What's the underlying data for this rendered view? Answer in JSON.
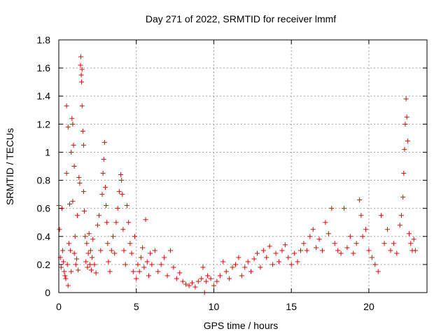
{
  "chart_data": {
    "type": "scatter",
    "title": "Day 271 of 2022, SRMTID for receiver lmmf",
    "xlabel": "GPS time / hours",
    "ylabel": "SRMTID / TECUs",
    "xlim": [
      0,
      23.75
    ],
    "ylim": [
      0,
      1.8
    ],
    "xticks": [
      0,
      5,
      10,
      15,
      20
    ],
    "xtick_labels": [
      "0",
      "5",
      "10",
      "15",
      "20"
    ],
    "yticks": [
      0,
      0.2,
      0.4,
      0.6,
      0.8,
      1,
      1.2,
      1.4,
      1.6,
      1.8
    ],
    "ytick_labels": [
      "0",
      "0.2",
      "0.4",
      "0.6",
      "0.8",
      "1",
      "1.2",
      "1.4",
      "1.6",
      "1.8"
    ],
    "grid": true,
    "marker": "+",
    "point_color": "#ee0000",
    "series": [
      {
        "name": "SRMTID",
        "points": [
          [
            0.0,
            0.62
          ],
          [
            0.05,
            0.45
          ],
          [
            0.1,
            0.25
          ],
          [
            0.15,
            0.18
          ],
          [
            0.2,
            0.6
          ],
          [
            0.25,
            0.3
          ],
          [
            0.3,
            0.22
          ],
          [
            0.35,
            0.15
          ],
          [
            0.4,
            0.12
          ],
          [
            0.45,
            0.1
          ],
          [
            0.5,
            0.85
          ],
          [
            0.5,
            1.33
          ],
          [
            0.55,
            0.2
          ],
          [
            0.6,
            0.05
          ],
          [
            0.6,
            1.18
          ],
          [
            0.65,
            0.35
          ],
          [
            0.7,
            0.63
          ],
          [
            0.75,
            0.3
          ],
          [
            0.8,
            1.0
          ],
          [
            0.8,
            0.15
          ],
          [
            0.85,
            1.24
          ],
          [
            0.9,
            1.2
          ],
          [
            0.9,
            0.65
          ],
          [
            0.95,
            1.05
          ],
          [
            1.0,
            0.9
          ],
          [
            1.0,
            0.28
          ],
          [
            1.05,
            0.4
          ],
          [
            1.1,
            0.2
          ],
          [
            1.15,
            0.24
          ],
          [
            1.2,
            0.55
          ],
          [
            1.25,
            0.16
          ],
          [
            1.3,
            0.82
          ],
          [
            1.35,
            0.78
          ],
          [
            1.4,
            1.62
          ],
          [
            1.42,
            1.68
          ],
          [
            1.45,
            1.55
          ],
          [
            1.47,
            1.5
          ],
          [
            1.5,
            1.59
          ],
          [
            1.5,
            1.33
          ],
          [
            1.55,
            1.15
          ],
          [
            1.6,
            1.05
          ],
          [
            1.6,
            0.72
          ],
          [
            1.65,
            0.58
          ],
          [
            1.7,
            0.4
          ],
          [
            1.75,
            0.22
          ],
          [
            1.8,
            0.35
          ],
          [
            1.85,
            0.18
          ],
          [
            1.9,
            0.28
          ],
          [
            1.95,
            0.42
          ],
          [
            2.0,
            0.2
          ],
          [
            2.05,
            0.3
          ],
          [
            2.1,
            0.16
          ],
          [
            2.15,
            0.25
          ],
          [
            2.2,
            0.38
          ],
          [
            2.3,
            0.2
          ],
          [
            2.4,
            0.14
          ],
          [
            2.5,
            0.48
          ],
          [
            2.6,
            0.55
          ],
          [
            2.7,
            0.3
          ],
          [
            2.8,
            0.7
          ],
          [
            2.85,
            0.85
          ],
          [
            2.9,
            0.95
          ],
          [
            2.95,
            1.07
          ],
          [
            3.0,
            0.75
          ],
          [
            3.05,
            0.62
          ],
          [
            3.1,
            0.5
          ],
          [
            3.15,
            0.35
          ],
          [
            3.2,
            0.22
          ],
          [
            3.3,
            0.15
          ],
          [
            3.4,
            0.3
          ],
          [
            3.5,
            0.4
          ],
          [
            3.6,
            0.28
          ],
          [
            3.7,
            0.5
          ],
          [
            3.8,
            0.6
          ],
          [
            3.9,
            0.72
          ],
          [
            4.0,
            0.84
          ],
          [
            4.05,
            0.8
          ],
          [
            4.1,
            0.7
          ],
          [
            4.15,
            0.45
          ],
          [
            4.2,
            0.3
          ],
          [
            4.3,
            0.2
          ],
          [
            4.4,
            0.62
          ],
          [
            4.5,
            0.5
          ],
          [
            4.6,
            0.35
          ],
          [
            4.7,
            0.28
          ],
          [
            4.8,
            0.15
          ],
          [
            4.9,
            0.4
          ],
          [
            5.0,
            0.1
          ],
          [
            5.1,
            0.2
          ],
          [
            5.2,
            0.15
          ],
          [
            5.3,
            0.25
          ],
          [
            5.4,
            0.32
          ],
          [
            5.5,
            0.18
          ],
          [
            5.6,
            0.52
          ],
          [
            5.7,
            0.22
          ],
          [
            5.8,
            0.12
          ],
          [
            5.9,
            0.28
          ],
          [
            6.0,
            0.2
          ],
          [
            6.2,
            0.3
          ],
          [
            6.4,
            0.15
          ],
          [
            6.6,
            0.2
          ],
          [
            6.8,
            0.25
          ],
          [
            7.0,
            0.12
          ],
          [
            7.2,
            0.3
          ],
          [
            7.4,
            0.18
          ],
          [
            7.6,
            0.1
          ],
          [
            7.8,
            0.14
          ],
          [
            8.0,
            0.08
          ],
          [
            8.2,
            0.06
          ],
          [
            8.4,
            0.05
          ],
          [
            8.6,
            0.07
          ],
          [
            8.8,
            0.04
          ],
          [
            9.0,
            0.08
          ],
          [
            9.2,
            0.1
          ],
          [
            9.3,
            0.18
          ],
          [
            9.4,
            0.0
          ],
          [
            9.5,
            0.08
          ],
          [
            9.6,
            0.12
          ],
          [
            9.8,
            0.1
          ],
          [
            10.0,
            0.05
          ],
          [
            10.2,
            0.08
          ],
          [
            10.4,
            0.12
          ],
          [
            10.6,
            0.22
          ],
          [
            10.8,
            0.15
          ],
          [
            11.0,
            0.1
          ],
          [
            11.2,
            0.18
          ],
          [
            11.4,
            0.2
          ],
          [
            11.6,
            0.25
          ],
          [
            11.8,
            0.12
          ],
          [
            12.0,
            0.18
          ],
          [
            12.2,
            0.22
          ],
          [
            12.4,
            0.15
          ],
          [
            12.6,
            0.24
          ],
          [
            12.8,
            0.28
          ],
          [
            13.0,
            0.18
          ],
          [
            13.2,
            0.3
          ],
          [
            13.4,
            0.25
          ],
          [
            13.6,
            0.33
          ],
          [
            13.8,
            0.2
          ],
          [
            14.0,
            0.28
          ],
          [
            14.2,
            0.22
          ],
          [
            14.4,
            0.3
          ],
          [
            14.6,
            0.34
          ],
          [
            14.8,
            0.25
          ],
          [
            15.0,
            0.2
          ],
          [
            15.2,
            0.28
          ],
          [
            15.4,
            0.22
          ],
          [
            15.6,
            0.3
          ],
          [
            15.8,
            0.35
          ],
          [
            16.0,
            0.3
          ],
          [
            16.2,
            0.4
          ],
          [
            16.4,
            0.45
          ],
          [
            16.6,
            0.32
          ],
          [
            16.8,
            0.38
          ],
          [
            17.0,
            0.3
          ],
          [
            17.2,
            0.5
          ],
          [
            17.4,
            0.42
          ],
          [
            17.6,
            0.6
          ],
          [
            17.8,
            0.35
          ],
          [
            18.0,
            0.3
          ],
          [
            18.2,
            0.28
          ],
          [
            18.4,
            0.6
          ],
          [
            18.6,
            0.32
          ],
          [
            18.8,
            0.4
          ],
          [
            19.0,
            0.28
          ],
          [
            19.2,
            0.35
          ],
          [
            19.4,
            0.66
          ],
          [
            19.5,
            0.55
          ],
          [
            19.6,
            0.4
          ],
          [
            19.8,
            0.45
          ],
          [
            20.0,
            0.3
          ],
          [
            20.2,
            0.25
          ],
          [
            20.4,
            0.2
          ],
          [
            20.6,
            0.15
          ],
          [
            20.8,
            0.55
          ],
          [
            21.0,
            0.35
          ],
          [
            21.2,
            0.45
          ],
          [
            21.4,
            0.3
          ],
          [
            21.6,
            0.35
          ],
          [
            21.8,
            0.28
          ],
          [
            22.0,
            0.48
          ],
          [
            22.1,
            0.55
          ],
          [
            22.2,
            0.68
          ],
          [
            22.25,
            0.85
          ],
          [
            22.3,
            1.02
          ],
          [
            22.35,
            1.2
          ],
          [
            22.4,
            1.38
          ],
          [
            22.45,
            1.25
          ],
          [
            22.5,
            1.08
          ],
          [
            22.6,
            0.42
          ],
          [
            22.7,
            0.35
          ],
          [
            22.8,
            0.3
          ],
          [
            22.9,
            0.38
          ],
          [
            23.0,
            0.3
          ]
        ]
      }
    ]
  }
}
